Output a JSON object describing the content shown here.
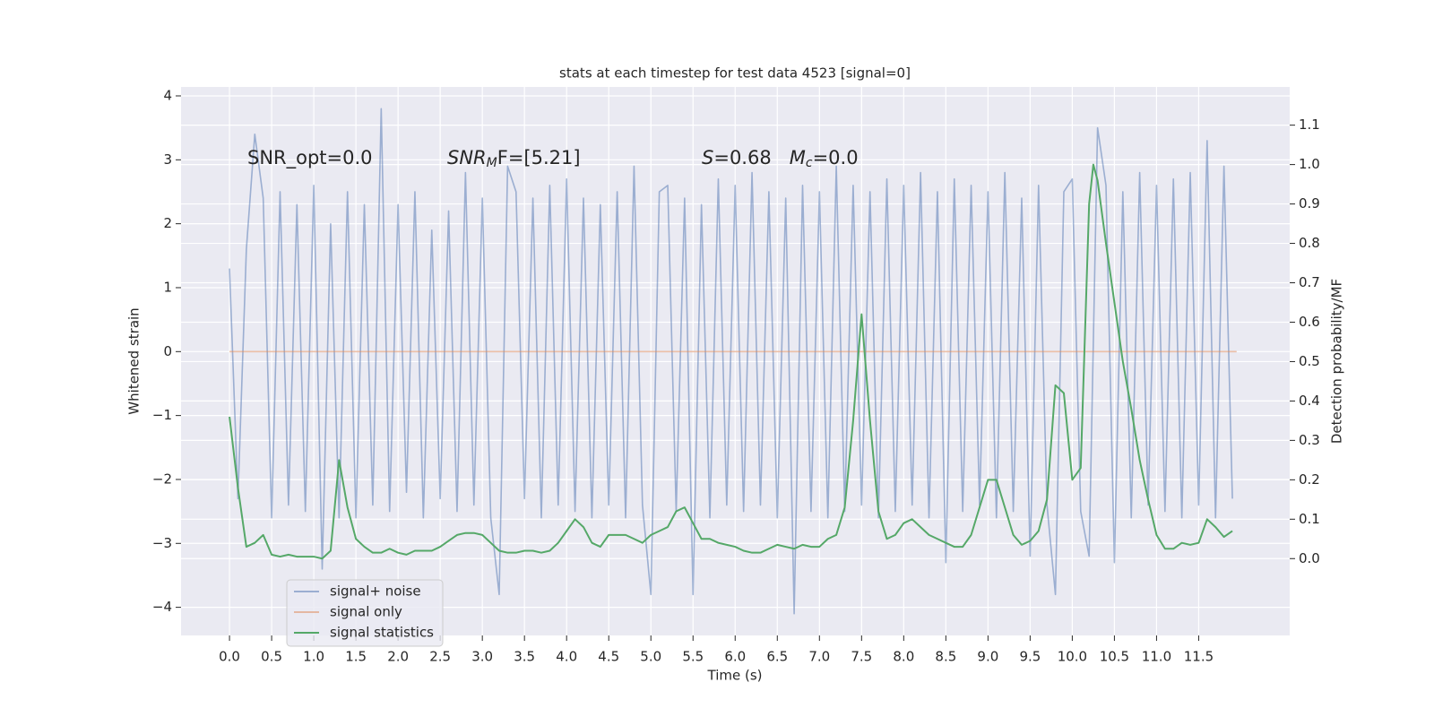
{
  "chart_data": {
    "type": "line",
    "title": "stats at each timestep for test data 4523 [signal=0]",
    "x_label": "Time (s)",
    "y_label": "Whitened strain",
    "y2_label": "Detection probability/MF",
    "xlim": [
      -0.575,
      12.58
    ],
    "ylim": [
      -4.44,
      4.14
    ],
    "y2lim": [
      -0.195,
      1.197
    ],
    "xticks": [
      {
        "value": 0,
        "label": "0.0"
      },
      0.5,
      {
        "value": 1,
        "label": "1.0"
      },
      1.5,
      {
        "value": 2,
        "label": "2.0"
      },
      2.5,
      {
        "value": 3,
        "label": "3.0"
      },
      3.5,
      {
        "value": 4,
        "label": "4.0"
      },
      4.5,
      {
        "value": 5,
        "label": "5.0"
      },
      5.5,
      {
        "value": 6,
        "label": "6.0"
      },
      6.5,
      {
        "value": 7,
        "label": "7.0"
      },
      7.5,
      {
        "value": 8,
        "label": "8.0"
      },
      8.5,
      {
        "value": 9,
        "label": "9.0"
      },
      9.5,
      {
        "value": 10,
        "label": "10.0"
      },
      10.5,
      {
        "value": 11,
        "label": "11.0"
      },
      11.5
    ],
    "yticks": [
      {
        "value": -4,
        "label": "−4"
      },
      {
        "value": -3,
        "label": "−3"
      },
      {
        "value": -2,
        "label": "−2"
      },
      {
        "value": -1,
        "label": "−1"
      },
      0,
      1,
      2,
      3,
      4
    ],
    "y2ticks": [
      {
        "value": 0,
        "label": "0.0"
      },
      0.1,
      0.2,
      0.3,
      0.4,
      0.5,
      0.6,
      0.7,
      0.8,
      0.9,
      {
        "value": 1,
        "label": "1.0"
      },
      1.1
    ],
    "grid": true,
    "legend": "lower left",
    "annotations": [
      [
        {
          "text": "SNR_opt=0.0"
        }
      ],
      [
        {
          "text": "SNR",
          "italic": true
        },
        {
          "text": "M",
          "italic": true,
          "sub": true
        },
        {
          "text": "F=[5.21]",
          "italic": false
        }
      ],
      [
        {
          "text": "S",
          "italic": true
        },
        {
          "text": "=0.68   "
        },
        {
          "text": "M",
          "italic": true
        },
        {
          "text": "c",
          "italic": true,
          "sub": true
        },
        {
          "text": "=0.0"
        }
      ]
    ],
    "series": [
      {
        "name": "signal+ noise",
        "color": "#4c72b0",
        "alpha": 0.5,
        "x": [
          0.0,
          0.1,
          0.2,
          0.3,
          0.4,
          0.5,
          0.6,
          0.7,
          0.8,
          0.9,
          1.0,
          1.1,
          1.2,
          1.3,
          1.4,
          1.5,
          1.6,
          1.7,
          1.8,
          1.9,
          2.0,
          2.1,
          2.2,
          2.3,
          2.4,
          2.5,
          2.6,
          2.7,
          2.8,
          2.9,
          3.0,
          3.1,
          3.2,
          3.3,
          3.4,
          3.5,
          3.6,
          3.7,
          3.8,
          3.9,
          4.0,
          4.1,
          4.2,
          4.3,
          4.4,
          4.5,
          4.6,
          4.7,
          4.8,
          4.9,
          5.0,
          5.1,
          5.2,
          5.3,
          5.4,
          5.5,
          5.6,
          5.7,
          5.8,
          5.9,
          6.0,
          6.1,
          6.2,
          6.3,
          6.4,
          6.5,
          6.6,
          6.7,
          6.8,
          6.9,
          7.0,
          7.1,
          7.2,
          7.3,
          7.4,
          7.5,
          7.6,
          7.7,
          7.8,
          7.9,
          8.0,
          8.1,
          8.2,
          8.3,
          8.4,
          8.5,
          8.6,
          8.7,
          8.8,
          8.9,
          9.0,
          9.1,
          9.2,
          9.3,
          9.4,
          9.5,
          9.6,
          9.7,
          9.8,
          9.9,
          10.0,
          10.1,
          10.2,
          10.3,
          10.4,
          10.5,
          10.6,
          10.7,
          10.8,
          10.9,
          11.0,
          11.1,
          11.2,
          11.3,
          11.4,
          11.5,
          11.6,
          11.7,
          11.8,
          11.9
        ],
        "values": [
          1.3,
          -2.3,
          1.6,
          3.4,
          2.4,
          -2.6,
          2.5,
          -2.4,
          2.3,
          -2.5,
          2.6,
          -3.4,
          2.0,
          -2.6,
          2.5,
          -2.6,
          2.3,
          -2.4,
          3.8,
          -2.5,
          2.3,
          -2.2,
          2.5,
          -2.6,
          1.9,
          -2.3,
          2.2,
          -2.5,
          2.8,
          -2.4,
          2.4,
          -2.6,
          -3.8,
          2.9,
          2.5,
          -2.3,
          2.4,
          -2.6,
          2.6,
          -2.4,
          2.7,
          -2.5,
          2.4,
          -2.6,
          2.3,
          -2.4,
          2.5,
          -2.6,
          2.9,
          -2.4,
          -3.8,
          2.5,
          2.6,
          -2.5,
          2.4,
          -3.8,
          2.3,
          -2.6,
          2.7,
          -2.4,
          2.6,
          -2.5,
          2.8,
          -2.4,
          2.5,
          -2.6,
          2.4,
          -4.1,
          2.6,
          -2.5,
          2.5,
          -2.6,
          2.9,
          -2.5,
          2.6,
          -2.4,
          2.5,
          -2.6,
          2.7,
          -2.5,
          2.6,
          -2.4,
          2.8,
          -2.6,
          2.5,
          -3.3,
          2.7,
          -2.5,
          2.6,
          -2.4,
          2.5,
          -2.6,
          2.8,
          -2.5,
          2.4,
          -3.2,
          2.6,
          -2.4,
          -3.8,
          2.5,
          2.7,
          -2.5,
          -3.2,
          3.5,
          2.6,
          -3.3,
          2.5,
          -2.6,
          2.8,
          -2.4,
          2.6,
          -2.5,
          2.7,
          -2.6,
          2.8,
          -2.4,
          3.3,
          -2.6,
          2.9,
          -2.3
        ]
      },
      {
        "name": "signal only",
        "color": "#dd8452",
        "alpha": 0.5,
        "x": [
          0.0,
          11.95
        ],
        "values": [
          0,
          0
        ]
      },
      {
        "name": "signal statistics",
        "color": "#55a868",
        "alpha": 1,
        "axis": "y2",
        "x": [
          0.0,
          0.1,
          0.2,
          0.3,
          0.4,
          0.5,
          0.6,
          0.7,
          0.8,
          0.9,
          1.0,
          1.1,
          1.2,
          1.3,
          1.4,
          1.5,
          1.6,
          1.7,
          1.8,
          1.9,
          2.0,
          2.1,
          2.2,
          2.3,
          2.4,
          2.5,
          2.6,
          2.7,
          2.8,
          2.9,
          3.0,
          3.1,
          3.2,
          3.3,
          3.4,
          3.5,
          3.6,
          3.7,
          3.8,
          3.9,
          4.0,
          4.1,
          4.2,
          4.3,
          4.4,
          4.5,
          4.6,
          4.7,
          4.8,
          4.9,
          5.0,
          5.1,
          5.2,
          5.3,
          5.4,
          5.5,
          5.6,
          5.7,
          5.8,
          5.9,
          6.0,
          6.1,
          6.2,
          6.3,
          6.4,
          6.5,
          6.6,
          6.7,
          6.8,
          6.9,
          7.0,
          7.1,
          7.2,
          7.3,
          7.4,
          7.5,
          7.6,
          7.7,
          7.8,
          7.9,
          8.0,
          8.1,
          8.2,
          8.3,
          8.4,
          8.5,
          8.6,
          8.7,
          8.8,
          8.9,
          9.0,
          9.1,
          9.2,
          9.3,
          9.4,
          9.5,
          9.6,
          9.7,
          9.8,
          9.9,
          10.0,
          10.1,
          10.2,
          10.25,
          10.3,
          10.4,
          10.5,
          10.6,
          10.7,
          10.8,
          10.9,
          11.0,
          11.1,
          11.2,
          11.3,
          11.4,
          11.5,
          11.6,
          11.7,
          11.8,
          11.9
        ],
        "values": [
          0.36,
          0.18,
          0.03,
          0.04,
          0.06,
          0.01,
          0.005,
          0.01,
          0.005,
          0.005,
          0.005,
          0,
          0.02,
          0.25,
          0.13,
          0.05,
          0.03,
          0.015,
          0.015,
          0.025,
          0.015,
          0.01,
          0.02,
          0.02,
          0.02,
          0.03,
          0.045,
          0.06,
          0.065,
          0.065,
          0.06,
          0.04,
          0.02,
          0.015,
          0.015,
          0.02,
          0.02,
          0.015,
          0.02,
          0.04,
          0.07,
          0.1,
          0.08,
          0.04,
          0.03,
          0.06,
          0.06,
          0.06,
          0.05,
          0.04,
          0.06,
          0.07,
          0.08,
          0.12,
          0.13,
          0.09,
          0.05,
          0.05,
          0.04,
          0.035,
          0.03,
          0.02,
          0.015,
          0.015,
          0.025,
          0.035,
          0.03,
          0.025,
          0.035,
          0.03,
          0.03,
          0.05,
          0.06,
          0.13,
          0.35,
          0.62,
          0.35,
          0.12,
          0.05,
          0.06,
          0.09,
          0.1,
          0.08,
          0.06,
          0.05,
          0.04,
          0.03,
          0.03,
          0.06,
          0.13,
          0.2,
          0.2,
          0.13,
          0.06,
          0.035,
          0.045,
          0.07,
          0.15,
          0.44,
          0.42,
          0.2,
          0.23,
          0.9,
          1.0,
          0.96,
          0.8,
          0.65,
          0.5,
          0.38,
          0.25,
          0.15,
          0.06,
          0.025,
          0.025,
          0.04,
          0.035,
          0.04,
          0.1,
          0.08,
          0.055,
          0.07
        ]
      }
    ]
  }
}
